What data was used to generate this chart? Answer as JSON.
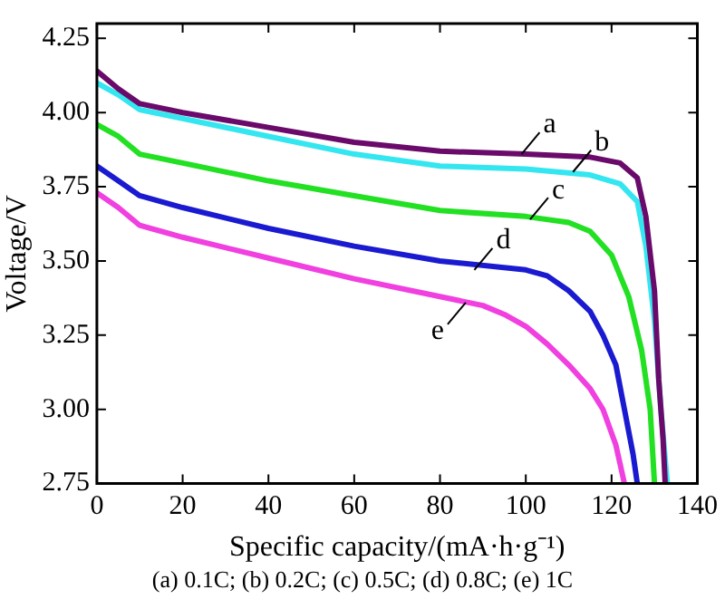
{
  "chart_data": {
    "type": "line",
    "xlabel": "Specific capacity/(mA·h·g⁻¹)",
    "ylabel": "Voltage/V",
    "series": [
      {
        "color": "#6a0a6a",
        "x": [
          0,
          5,
          10,
          20,
          40,
          60,
          80,
          100,
          115,
          122,
          126,
          128,
          130,
          131,
          132,
          132.5
        ],
        "values": [
          4.14,
          4.08,
          4.03,
          4.0,
          3.95,
          3.9,
          3.87,
          3.86,
          3.85,
          3.83,
          3.78,
          3.65,
          3.4,
          3.1,
          2.9,
          2.75
        ]
      },
      {
        "color": "#33e6f0",
        "x": [
          0,
          5,
          10,
          20,
          40,
          60,
          80,
          100,
          115,
          122,
          126,
          128,
          130,
          131.5,
          133
        ],
        "values": [
          4.1,
          4.06,
          4.01,
          3.98,
          3.92,
          3.86,
          3.82,
          3.81,
          3.79,
          3.76,
          3.7,
          3.55,
          3.3,
          3.0,
          2.75
        ]
      },
      {
        "color": "#22e022",
        "x": [
          0,
          5,
          10,
          20,
          40,
          60,
          80,
          100,
          110,
          115,
          120,
          124,
          127,
          129,
          130
        ],
        "values": [
          3.96,
          3.92,
          3.86,
          3.83,
          3.77,
          3.72,
          3.67,
          3.65,
          3.63,
          3.6,
          3.52,
          3.38,
          3.2,
          3.0,
          2.75
        ]
      },
      {
        "color": "#1a1ad0",
        "x": [
          0,
          5,
          10,
          20,
          40,
          60,
          80,
          100,
          105,
          110,
          115,
          118,
          121,
          123,
          125,
          126
        ],
        "values": [
          3.82,
          3.77,
          3.72,
          3.68,
          3.61,
          3.55,
          3.5,
          3.47,
          3.45,
          3.4,
          3.33,
          3.25,
          3.15,
          3.0,
          2.85,
          2.75
        ]
      },
      {
        "color": "#f040e0",
        "x": [
          0,
          5,
          10,
          20,
          40,
          60,
          80,
          90,
          95,
          100,
          105,
          110,
          115,
          118,
          121,
          123
        ],
        "values": [
          3.73,
          3.68,
          3.62,
          3.58,
          3.51,
          3.44,
          3.38,
          3.35,
          3.32,
          3.28,
          3.22,
          3.15,
          3.07,
          3.0,
          2.88,
          2.75
        ]
      }
    ],
    "xlim": [
      0,
      140
    ],
    "xticks": [
      0,
      20,
      40,
      60,
      80,
      100,
      120,
      140
    ],
    "ylim": [
      2.75,
      4.3
    ],
    "yticks": [
      {
        "value": 2.75,
        "label": "2.75"
      },
      {
        "value": 3.0,
        "label": "3.00"
      },
      {
        "value": 3.25,
        "label": "3.25"
      },
      {
        "value": 3.5,
        "label": "3.50"
      },
      {
        "value": 3.75,
        "label": "3.75"
      },
      {
        "value": 4.0,
        "label": "4.00"
      },
      {
        "value": 4.25,
        "label": "4.25"
      }
    ],
    "grid": false,
    "legend": false,
    "marker": "none",
    "line_style": "solid",
    "annotations": [
      {
        "text": "a",
        "x": 99,
        "y": 3.86
      },
      {
        "text": "b",
        "x": 111,
        "y": 3.8
      },
      {
        "text": "c",
        "x": 101,
        "y": 3.64
      },
      {
        "text": "d",
        "x": 88,
        "y": 3.47
      },
      {
        "text": "e",
        "x": 86,
        "y": 3.36
      },
      "(a) 0.1C; (b) 0.2C; (c) 0.5C; (d) 0.8C; (e) 1C"
    ]
  }
}
